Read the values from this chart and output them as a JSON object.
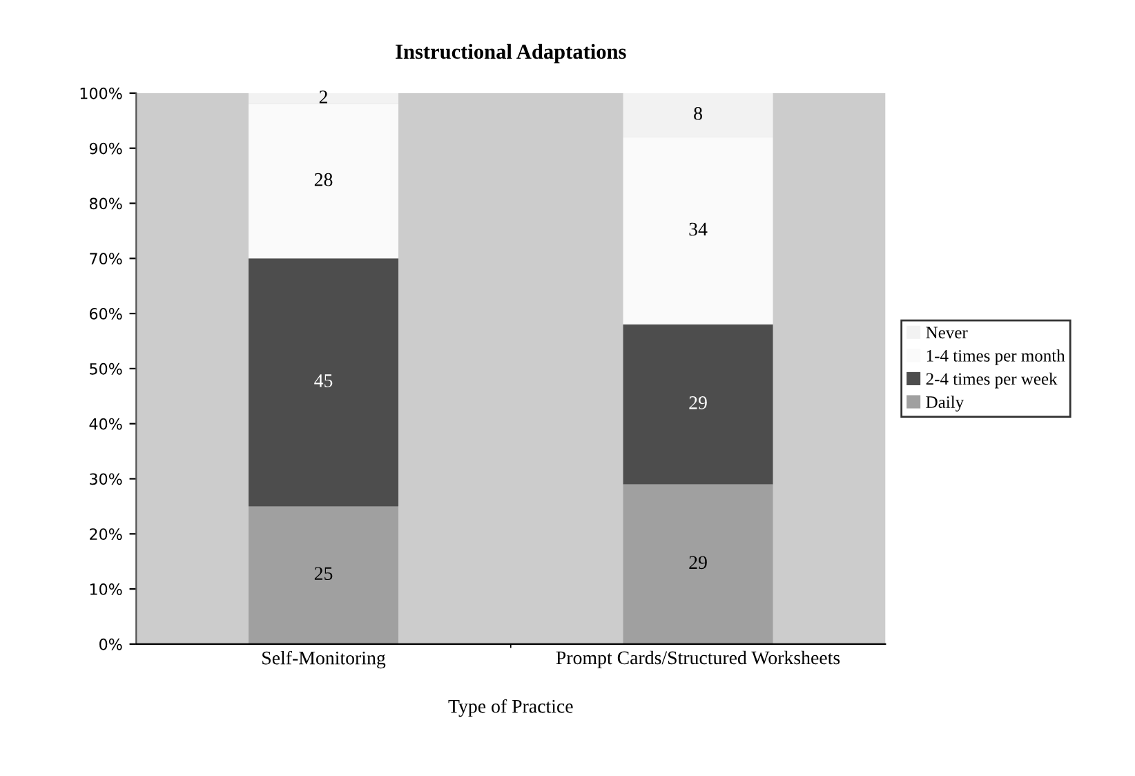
{
  "chart_data": {
    "type": "bar",
    "title": "Instructional Adaptations",
    "xlabel": "Type of Practice",
    "categories": [
      "Self-Monitoring",
      "Prompt Cards/Structured Worksheets"
    ],
    "stacked": true,
    "data_labels": true,
    "legend": "right",
    "grid": false,
    "ylim": [
      0,
      100
    ],
    "yticks": [
      {
        "value": 0,
        "label": "0%"
      },
      {
        "value": 10,
        "label": "10%"
      },
      {
        "value": 20,
        "label": "20%"
      },
      {
        "value": 30,
        "label": "30%"
      },
      {
        "value": 40,
        "label": "40%"
      },
      {
        "value": 50,
        "label": "50%"
      },
      {
        "value": 60,
        "label": "60%"
      },
      {
        "value": 70,
        "label": "70%"
      },
      {
        "value": 80,
        "label": "80%"
      },
      {
        "value": 90,
        "label": "90%"
      },
      {
        "value": 100,
        "label": "100%"
      }
    ],
    "series": [
      {
        "name": "Daily",
        "color": "#a0a0a0",
        "values": [
          25,
          29
        ]
      },
      {
        "name": "2-4 times per week",
        "color": "#4d4d4d",
        "values": [
          45,
          29
        ]
      },
      {
        "name": "1-4 times per month",
        "color": "#fafafa",
        "values": [
          28,
          34
        ]
      },
      {
        "name": "Never",
        "color": "#f2f2f2",
        "values": [
          2,
          8
        ]
      }
    ]
  }
}
